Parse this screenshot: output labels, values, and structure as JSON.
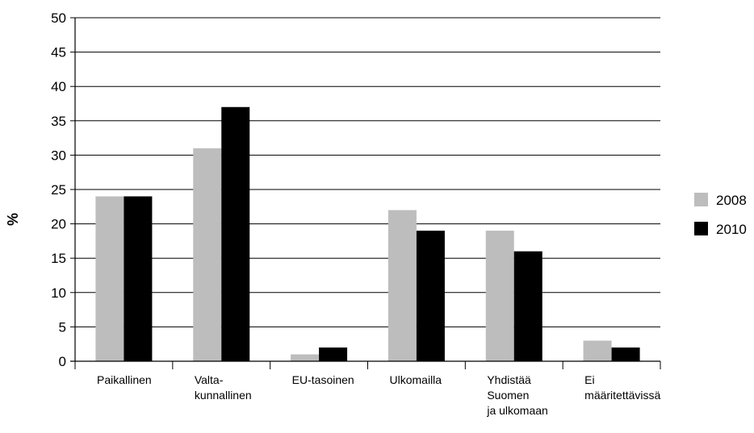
{
  "chart_data": {
    "type": "bar",
    "categories": [
      [
        "Paikallinen"
      ],
      [
        "Valta-",
        "kunnallinen"
      ],
      [
        "EU-tasoinen"
      ],
      [
        "Ulkomailla"
      ],
      [
        "Yhdistää",
        "Suomen",
        "ja ulkomaan"
      ],
      [
        "Ei",
        "määritettävissä"
      ]
    ],
    "series": [
      {
        "name": "2008",
        "color": "#bdbdbd",
        "values": [
          24,
          31,
          1,
          22,
          19,
          3
        ]
      },
      {
        "name": "2010",
        "color": "#000000",
        "values": [
          24,
          37,
          2,
          19,
          16,
          2
        ]
      }
    ],
    "ylabel": "%",
    "ylim": [
      0,
      50
    ],
    "yticks": [
      0,
      5,
      10,
      15,
      20,
      25,
      30,
      35,
      40,
      45,
      50
    ],
    "grid": true,
    "legend_position": "right"
  }
}
